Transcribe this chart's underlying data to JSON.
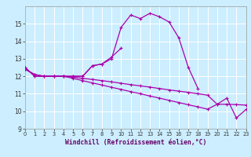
{
  "background_color": "#cceeff",
  "grid_color": "#ffffff",
  "line_color": "#aa00aa",
  "xlim": [
    0,
    23
  ],
  "ylim": [
    9,
    16
  ],
  "yticks": [
    9,
    10,
    11,
    12,
    13,
    14,
    15
  ],
  "xticks": [
    0,
    1,
    2,
    3,
    4,
    5,
    6,
    7,
    8,
    9,
    10,
    11,
    12,
    13,
    14,
    15,
    16,
    17,
    18,
    19,
    20,
    21,
    22,
    23
  ],
  "xlabel": "Windchill (Refroidissement éolien,°C)",
  "hours": [
    0,
    1,
    2,
    3,
    4,
    5,
    6,
    7,
    8,
    9,
    10,
    11,
    12,
    13,
    14,
    15,
    16,
    17,
    18,
    19,
    20,
    21,
    22,
    23
  ],
  "line1_x": [
    0,
    1,
    2,
    3,
    4,
    5,
    6,
    7,
    8,
    9,
    10,
    11,
    12,
    13,
    14,
    15,
    16,
    17,
    18
  ],
  "line1_y": [
    12.5,
    12.0,
    12.0,
    12.0,
    12.0,
    12.0,
    12.0,
    12.6,
    12.7,
    13.0,
    14.8,
    15.5,
    15.3,
    15.6,
    15.4,
    15.1,
    14.2,
    12.5,
    11.3
  ],
  "line2_x": [
    0,
    1,
    2,
    3,
    4,
    5,
    6,
    7,
    8,
    9,
    10
  ],
  "line2_y": [
    12.5,
    12.0,
    12.0,
    12.0,
    12.0,
    12.0,
    12.0,
    12.6,
    12.7,
    13.1,
    13.6
  ],
  "line3_x": [
    0,
    1,
    2,
    3,
    4,
    5,
    6,
    7,
    8,
    9,
    10,
    11,
    12,
    13,
    14,
    15,
    16,
    17,
    18,
    19,
    20,
    21,
    22,
    23
  ],
  "line3_y": [
    12.4,
    12.1,
    12.0,
    12.0,
    12.0,
    11.95,
    11.88,
    11.82,
    11.75,
    11.68,
    11.6,
    11.52,
    11.45,
    11.38,
    11.3,
    11.22,
    11.15,
    11.08,
    11.0,
    10.92,
    10.4,
    10.4,
    10.38,
    10.35
  ],
  "line4_x": [
    0,
    1,
    2,
    3,
    4,
    5,
    6,
    7,
    8,
    9,
    10,
    11,
    12,
    13,
    14,
    15,
    16,
    17,
    18,
    19,
    20,
    21,
    22,
    23
  ],
  "line4_y": [
    12.4,
    12.1,
    12.0,
    12.0,
    12.0,
    11.88,
    11.75,
    11.62,
    11.5,
    11.37,
    11.25,
    11.12,
    11.0,
    10.87,
    10.75,
    10.62,
    10.5,
    10.37,
    10.25,
    10.12,
    10.4,
    10.75,
    9.62,
    10.1
  ]
}
